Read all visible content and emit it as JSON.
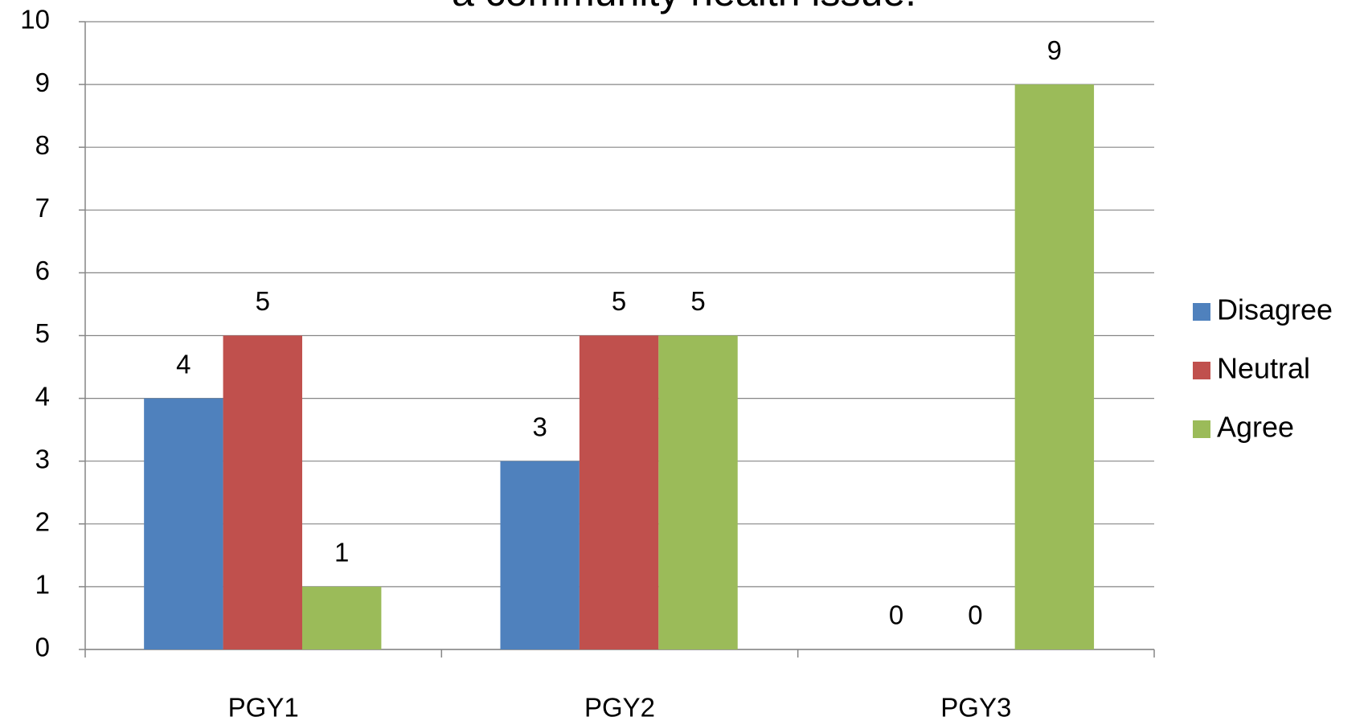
{
  "chart_data": {
    "type": "bar",
    "title": "a community health issue.",
    "categories": [
      "PGY1",
      "PGY2",
      "PGY3"
    ],
    "series": [
      {
        "name": "Disagree",
        "color": "#4f81bd",
        "values": [
          4,
          3,
          0
        ]
      },
      {
        "name": "Neutral",
        "color": "#c0504d",
        "values": [
          5,
          5,
          0
        ]
      },
      {
        "name": "Agree",
        "color": "#9bbb59",
        "values": [
          1,
          5,
          9
        ]
      }
    ],
    "ylim": [
      0,
      10
    ],
    "yticks": [
      0,
      1,
      2,
      3,
      4,
      5,
      6,
      7,
      8,
      9,
      10
    ],
    "grid": true,
    "legend": "right"
  }
}
